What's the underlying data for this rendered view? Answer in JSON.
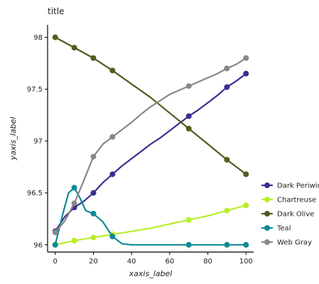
{
  "chart_data": {
    "type": "line",
    "title": "title",
    "xlabel": "xaxis_label",
    "ylabel": "yaxis_label",
    "xlim": [
      -4,
      104
    ],
    "ylim": [
      95.93,
      98.12
    ],
    "xticks": [
      0,
      20,
      40,
      60,
      80,
      100
    ],
    "yticks": [
      96,
      96.5,
      97,
      97.5,
      98
    ],
    "xtick_labels": [
      "0",
      "20",
      "40",
      "60",
      "80",
      "100"
    ],
    "ytick_labels": [
      "96",
      "96.5",
      "97",
      "97.5",
      "98"
    ],
    "legend_position": "right",
    "series": [
      {
        "name": "Dark Periwinkle",
        "color": "#3a2f8f",
        "x": [
          0,
          5,
          10,
          15,
          20,
          25,
          30,
          35,
          40,
          45,
          50,
          55,
          60,
          65,
          70,
          75,
          80,
          85,
          90,
          95,
          100
        ],
        "y": [
          96.13,
          96.27,
          96.36,
          96.42,
          96.5,
          96.6,
          96.68,
          96.76,
          96.83,
          96.9,
          96.97,
          97.03,
          97.1,
          97.17,
          97.24,
          97.3,
          97.37,
          97.44,
          97.52,
          97.58,
          97.65
        ],
        "markers": [
          0,
          10,
          20,
          30,
          70,
          90,
          100
        ]
      },
      {
        "name": "Chartreuse",
        "color": "#b7ee2b",
        "x": [
          0,
          10,
          20,
          30,
          40,
          50,
          60,
          70,
          80,
          90,
          100
        ],
        "y": [
          96.0,
          96.04,
          96.07,
          96.1,
          96.13,
          96.16,
          96.2,
          96.24,
          96.28,
          96.33,
          96.38
        ],
        "markers": [
          0,
          10,
          20,
          30,
          70,
          90,
          100
        ]
      },
      {
        "name": "Dark Olive",
        "color": "#4e5e1e",
        "x": [
          0,
          10,
          20,
          30,
          40,
          50,
          60,
          70,
          80,
          90,
          100
        ],
        "y": [
          98.0,
          97.9,
          97.8,
          97.68,
          97.55,
          97.42,
          97.27,
          97.12,
          96.97,
          96.82,
          96.68
        ],
        "markers": [
          0,
          10,
          20,
          30,
          70,
          90,
          100
        ]
      },
      {
        "name": "Teal",
        "color": "#0f8a94",
        "x": [
          0,
          4,
          7,
          10,
          13,
          16,
          20,
          25,
          30,
          35,
          40,
          50,
          60,
          70,
          80,
          90,
          100
        ],
        "y": [
          96.0,
          96.3,
          96.5,
          96.55,
          96.45,
          96.33,
          96.3,
          96.22,
          96.08,
          96.01,
          96.0,
          96.0,
          96.0,
          96.0,
          96.0,
          96.0,
          96.0
        ],
        "markers": [
          0,
          10,
          20,
          30,
          70,
          90,
          100
        ]
      },
      {
        "name": "Web Gray",
        "color": "#888888",
        "x": [
          0,
          5,
          10,
          15,
          20,
          25,
          30,
          35,
          40,
          45,
          50,
          55,
          60,
          65,
          70,
          75,
          80,
          85,
          90,
          95,
          100
        ],
        "y": [
          96.12,
          96.23,
          96.4,
          96.62,
          96.85,
          96.97,
          97.04,
          97.11,
          97.18,
          97.26,
          97.33,
          97.39,
          97.45,
          97.49,
          97.53,
          97.57,
          97.61,
          97.65,
          97.7,
          97.74,
          97.8
        ],
        "markers": [
          0,
          10,
          20,
          30,
          70,
          90,
          100
        ]
      }
    ]
  }
}
